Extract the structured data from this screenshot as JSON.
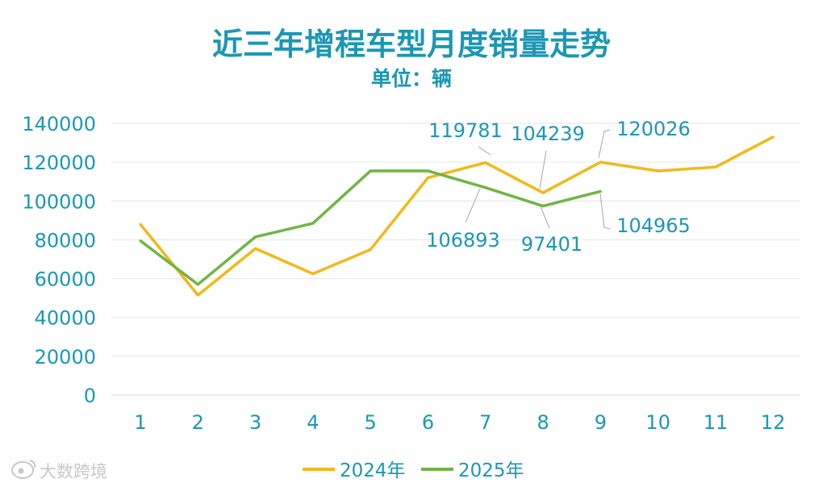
{
  "chart_data": {
    "type": "line",
    "title": "近三年增程车型月度销量走势",
    "subtitle": "单位：辆",
    "categories": [
      "1",
      "2",
      "3",
      "4",
      "5",
      "6",
      "7",
      "8",
      "9",
      "10",
      "11",
      "12"
    ],
    "ylim": [
      0,
      140000
    ],
    "yticks": [
      0,
      20000,
      40000,
      60000,
      80000,
      100000,
      120000,
      140000
    ],
    "grid": true,
    "legend_position": "bottom",
    "series": [
      {
        "name": "2024年",
        "color": "#f2b81b",
        "values": [
          88000,
          51500,
          75500,
          62500,
          75000,
          112000,
          119781,
          104239,
          120026,
          115500,
          117500,
          133000
        ]
      },
      {
        "name": "2025年",
        "color": "#70b445",
        "values": [
          79500,
          57000,
          81500,
          88500,
          115500,
          115500,
          106893,
          97401,
          104965,
          null,
          null,
          null
        ]
      }
    ],
    "data_labels": [
      {
        "series": 0,
        "index": 6,
        "text": "119781"
      },
      {
        "series": 0,
        "index": 7,
        "text": "104239"
      },
      {
        "series": 0,
        "index": 8,
        "text": "120026"
      },
      {
        "series": 1,
        "index": 6,
        "text": "106893"
      },
      {
        "series": 1,
        "index": 7,
        "text": "97401"
      },
      {
        "series": 1,
        "index": 8,
        "text": "104965"
      }
    ]
  },
  "watermark": {
    "text": "大数跨境",
    "icon": "weibo-logo-icon"
  }
}
